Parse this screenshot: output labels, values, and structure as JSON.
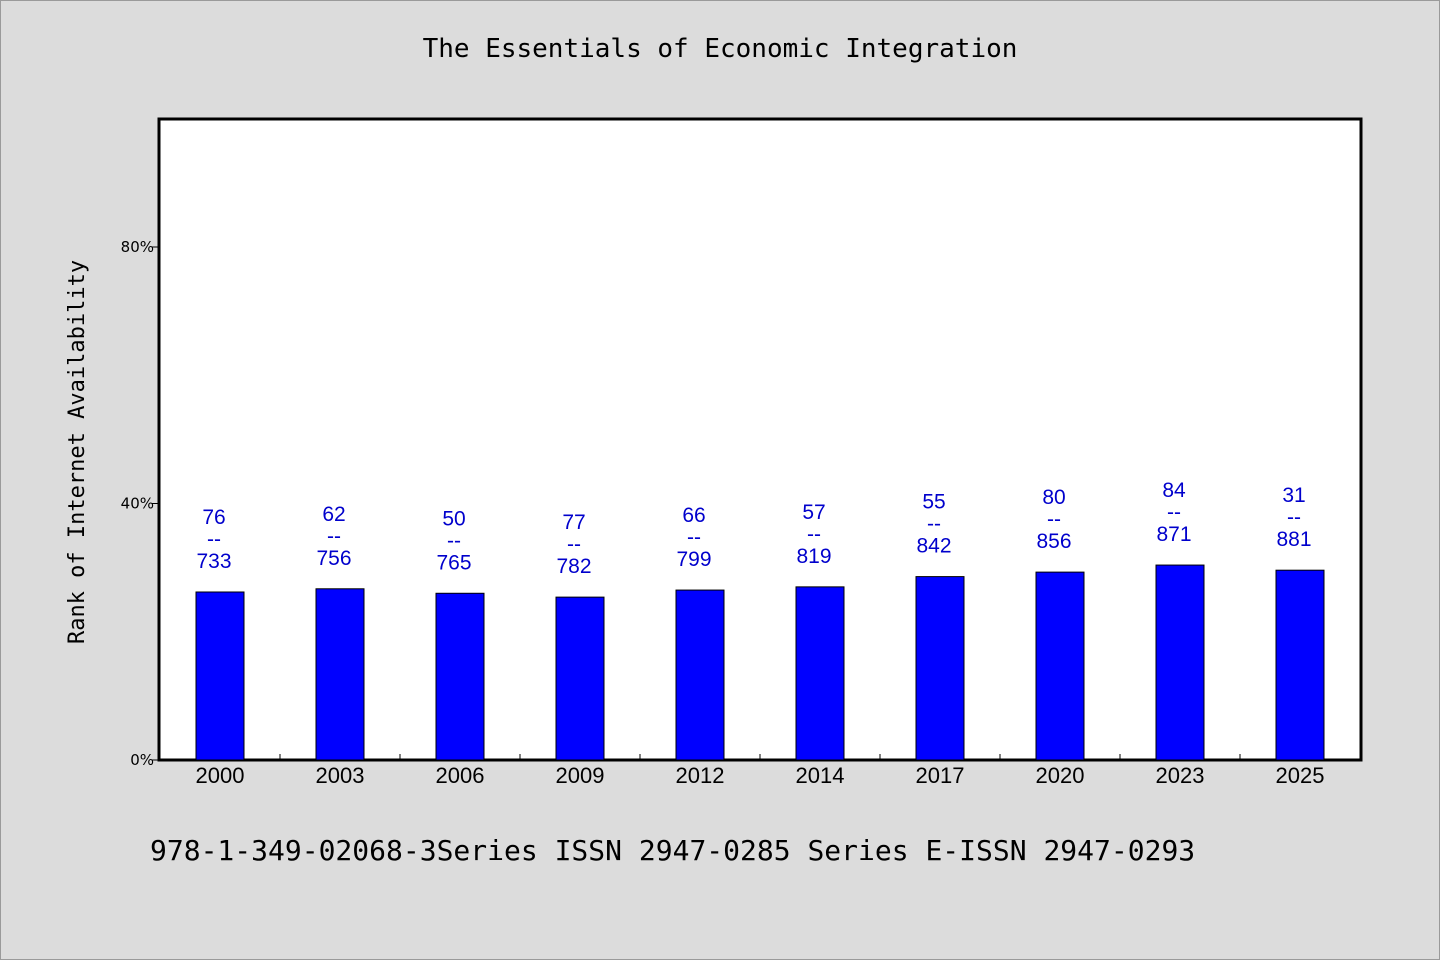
{
  "chart_data": {
    "type": "bar",
    "title": "The Essentials of Economic Integration",
    "xlabel": "",
    "ylabel": "Rank of Internet Availability",
    "ylim": [
      0,
      100
    ],
    "yticks": [
      0,
      40,
      80
    ],
    "ytick_labels": [
      "0%",
      "40%",
      "80%"
    ],
    "categories": [
      "2000",
      "2003",
      "2006",
      "2009",
      "2012",
      "2014",
      "2017",
      "2020",
      "2023",
      "2025"
    ],
    "values": [
      26.2,
      26.7,
      26.0,
      25.4,
      26.5,
      27.0,
      28.6,
      29.3,
      30.4,
      29.6
    ],
    "data_labels": [
      {
        "top": "76",
        "mid": "--",
        "bottom": "733"
      },
      {
        "top": "62",
        "mid": "--",
        "bottom": "756"
      },
      {
        "top": "50",
        "mid": "--",
        "bottom": "765"
      },
      {
        "top": "77",
        "mid": "--",
        "bottom": "782"
      },
      {
        "top": "66",
        "mid": "--",
        "bottom": "799"
      },
      {
        "top": "57",
        "mid": "--",
        "bottom": "819"
      },
      {
        "top": "55",
        "mid": "--",
        "bottom": "842"
      },
      {
        "top": "80",
        "mid": "--",
        "bottom": "856"
      },
      {
        "top": "84",
        "mid": "--",
        "bottom": "871"
      },
      {
        "top": "31",
        "mid": "--",
        "bottom": "881"
      }
    ],
    "grid": false,
    "colors": {
      "bar": "#0000ff",
      "data_label": "#0000cc",
      "axis": "#000000",
      "plot_bg": "#ffffff",
      "page_bg": "#dcdcdc"
    }
  },
  "footer": {
    "text": "978-1-349-02068-3Series ISSN 2947-0285 Series E-ISSN 2947-0293"
  }
}
